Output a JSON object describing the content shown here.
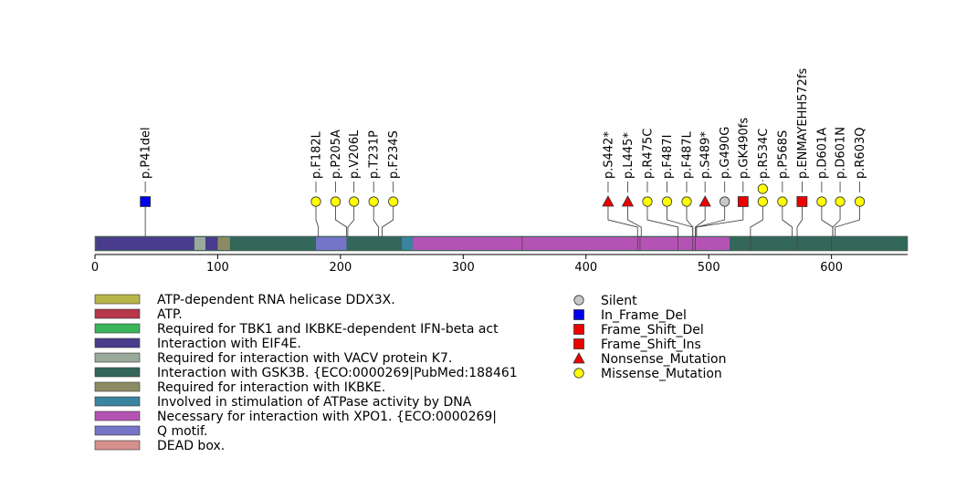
{
  "chart_data": {
    "type": "lollipop",
    "protein_length": 662,
    "xlim": [
      0,
      662
    ],
    "x_ticks": [
      0,
      100,
      200,
      300,
      400,
      500,
      600
    ],
    "domains": [
      {
        "name": "Interaction with EIF4E.",
        "start": 1,
        "end": 81
      },
      {
        "name": "Required for interaction with VACV protein K7.",
        "start": 81,
        "end": 90
      },
      {
        "name": "Interaction with EIF4E.",
        "start": 90,
        "end": 100
      },
      {
        "name": "Required for interaction with IKBKE.",
        "start": 100,
        "end": 110
      },
      {
        "name": "Interaction with GSK3B. {ECO:0000269|PubMed:188461",
        "start": 110,
        "end": 180
      },
      {
        "name": "Q motif.",
        "start": 180,
        "end": 205
      },
      {
        "name": "Interaction with GSK3B. {ECO:0000269|PubMed:188461",
        "start": 205,
        "end": 250
      },
      {
        "name": "Involved in stimulation of ATPase activity by DNA",
        "start": 250,
        "end": 259
      },
      {
        "name": "Necessary for interaction with XPO1. {ECO:0000269|",
        "start": 259,
        "end": 517
      },
      {
        "name": "Interaction with GSK3B. {ECO:0000269|PubMed:188461",
        "start": 517,
        "end": 662
      }
    ],
    "tick_marks": [
      348,
      442,
      444,
      475,
      487,
      489,
      534,
      572,
      600
    ],
    "mutations": [
      {
        "label": "p.P41del",
        "pos": 41,
        "type": "In_Frame_Del",
        "lx": 41,
        "stack": 1
      },
      {
        "label": "p.F182L",
        "pos": 182,
        "type": "Missense_Mutation",
        "lx": 180,
        "stack": 1
      },
      {
        "label": "p.P205A",
        "pos": 205,
        "type": "Missense_Mutation",
        "lx": 196,
        "stack": 1
      },
      {
        "label": "p.V206L",
        "pos": 206,
        "type": "Missense_Mutation",
        "lx": 211,
        "stack": 1
      },
      {
        "label": "p.T231P",
        "pos": 231,
        "type": "Missense_Mutation",
        "lx": 227,
        "stack": 1
      },
      {
        "label": "p.F234S",
        "pos": 234,
        "type": "Missense_Mutation",
        "lx": 243,
        "stack": 1
      },
      {
        "label": "p.S442*",
        "pos": 442,
        "type": "Nonsense_Mutation",
        "lx": 418,
        "stack": 1
      },
      {
        "label": "p.L445*",
        "pos": 445,
        "type": "Nonsense_Mutation",
        "lx": 434,
        "stack": 1
      },
      {
        "label": "p.R475C",
        "pos": 475,
        "type": "Missense_Mutation",
        "lx": 450,
        "stack": 1
      },
      {
        "label": "p.F487I",
        "pos": 487,
        "type": "Missense_Mutation",
        "lx": 466,
        "stack": 1
      },
      {
        "label": "p.F487L",
        "pos": 487,
        "type": "Missense_Mutation",
        "lx": 482,
        "stack": 1
      },
      {
        "label": "p.S489*",
        "pos": 489,
        "type": "Nonsense_Mutation",
        "lx": 497,
        "stack": 1
      },
      {
        "label": "p.G490G",
        "pos": 490,
        "type": "Silent",
        "lx": 513,
        "stack": 1
      },
      {
        "label": "p.GK490fs",
        "pos": 490,
        "type": "Frame_Shift_Ins",
        "lx": 528,
        "stack": 1
      },
      {
        "label": "p.R534C",
        "pos": 534,
        "type": "Missense_Mutation",
        "lx": 544,
        "stack": 2
      },
      {
        "label": "p.P568S",
        "pos": 568,
        "type": "Missense_Mutation",
        "lx": 560,
        "stack": 1
      },
      {
        "label": "p.ENMAYEHH572fs",
        "pos": 572,
        "type": "Frame_Shift_Ins",
        "lx": 576,
        "stack": 1
      },
      {
        "label": "p.D601A",
        "pos": 601,
        "type": "Missense_Mutation",
        "lx": 592,
        "stack": 1
      },
      {
        "label": "p.D601N",
        "pos": 601,
        "type": "Missense_Mutation",
        "lx": 607,
        "stack": 1
      },
      {
        "label": "p.R603Q",
        "pos": 603,
        "type": "Missense_Mutation",
        "lx": 623,
        "stack": 1
      }
    ],
    "legend_domains": [
      {
        "label": "ATP-dependent RNA helicase DDX3X.",
        "color": "#b5b54a"
      },
      {
        "label": "ATP.",
        "color": "#b5374a"
      },
      {
        "label": "Required for TBK1 and IKBKE-dependent IFN-beta act",
        "color": "#3cb55a"
      },
      {
        "label": "Interaction with EIF4E.",
        "color": "#4a3c8c"
      },
      {
        "label": "Required for interaction with VACV protein K7.",
        "color": "#9aaa9a"
      },
      {
        "label": "Interaction with GSK3B. {ECO:0000269|PubMed:188461",
        "color": "#33675a"
      },
      {
        "label": "Required for interaction with IKBKE.",
        "color": "#8c8c64"
      },
      {
        "label": "Involved in stimulation of ATPase activity by DNA",
        "color": "#3a84a0"
      },
      {
        "label": "Necessary for interaction with XPO1. {ECO:0000269|",
        "color": "#b553b5"
      },
      {
        "label": "Q motif.",
        "color": "#7474c8"
      },
      {
        "label": "DEAD box.",
        "color": "#d4908a"
      }
    ],
    "legend_mutations": [
      {
        "label": "Silent",
        "type": "Silent"
      },
      {
        "label": "In_Frame_Del",
        "type": "In_Frame_Del"
      },
      {
        "label": "Frame_Shift_Del",
        "type": "Frame_Shift_Del"
      },
      {
        "label": "Frame_Shift_Ins",
        "type": "Frame_Shift_Ins"
      },
      {
        "label": "Nonsense_Mutation",
        "type": "Nonsense_Mutation"
      },
      {
        "label": "Missense_Mutation",
        "type": "Missense_Mutation"
      }
    ],
    "mutation_styles": {
      "Silent": {
        "shape": "circle",
        "color": "#c8c8c8"
      },
      "In_Frame_Del": {
        "shape": "square",
        "color": "#0000ee"
      },
      "Frame_Shift_Del": {
        "shape": "square",
        "color": "#ee0000"
      },
      "Frame_Shift_Ins": {
        "shape": "square",
        "color": "#ee0000"
      },
      "Nonsense_Mutation": {
        "shape": "triangle",
        "color": "#ee0000"
      },
      "Missense_Mutation": {
        "shape": "circle",
        "color": "#ffff00"
      }
    },
    "backbone_color": "#33675a"
  }
}
